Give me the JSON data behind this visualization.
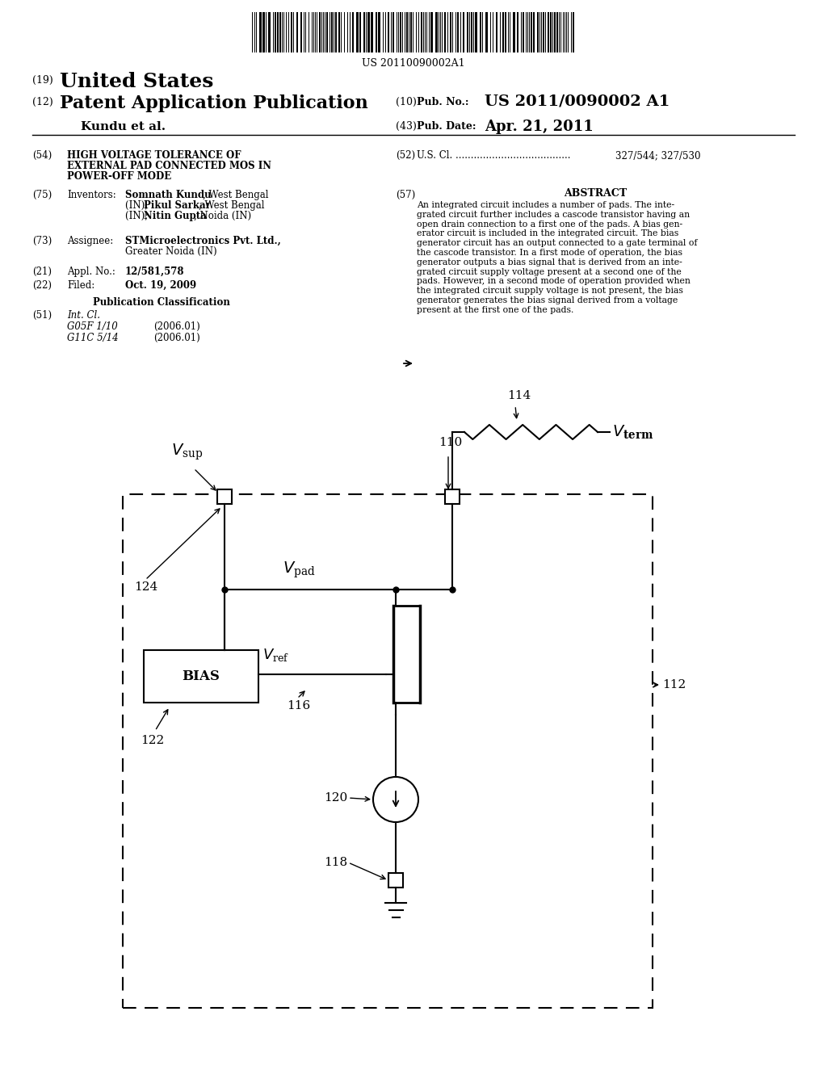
{
  "barcode_text": "US 20110090002A1",
  "bg_color": "#ffffff",
  "abstract_lines": [
    "An integrated circuit includes a number of pads. The inte-",
    "grated circuit further includes a cascode transistor having an",
    "open drain connection to a first one of the pads. A bias gen-",
    "erator circuit is included in the integrated circuit. The bias",
    "generator circuit has an output connected to a gate terminal of",
    "the cascode transistor. In a first mode of operation, the bias",
    "generator outputs a bias signal that is derived from an inte-",
    "grated circuit supply voltage present at a second one of the",
    "pads. However, in a second mode of operation provided when",
    "the integrated circuit supply voltage is not present, the bias",
    "generator generates the bias signal derived from a voltage",
    "present at the first one of the pads."
  ]
}
